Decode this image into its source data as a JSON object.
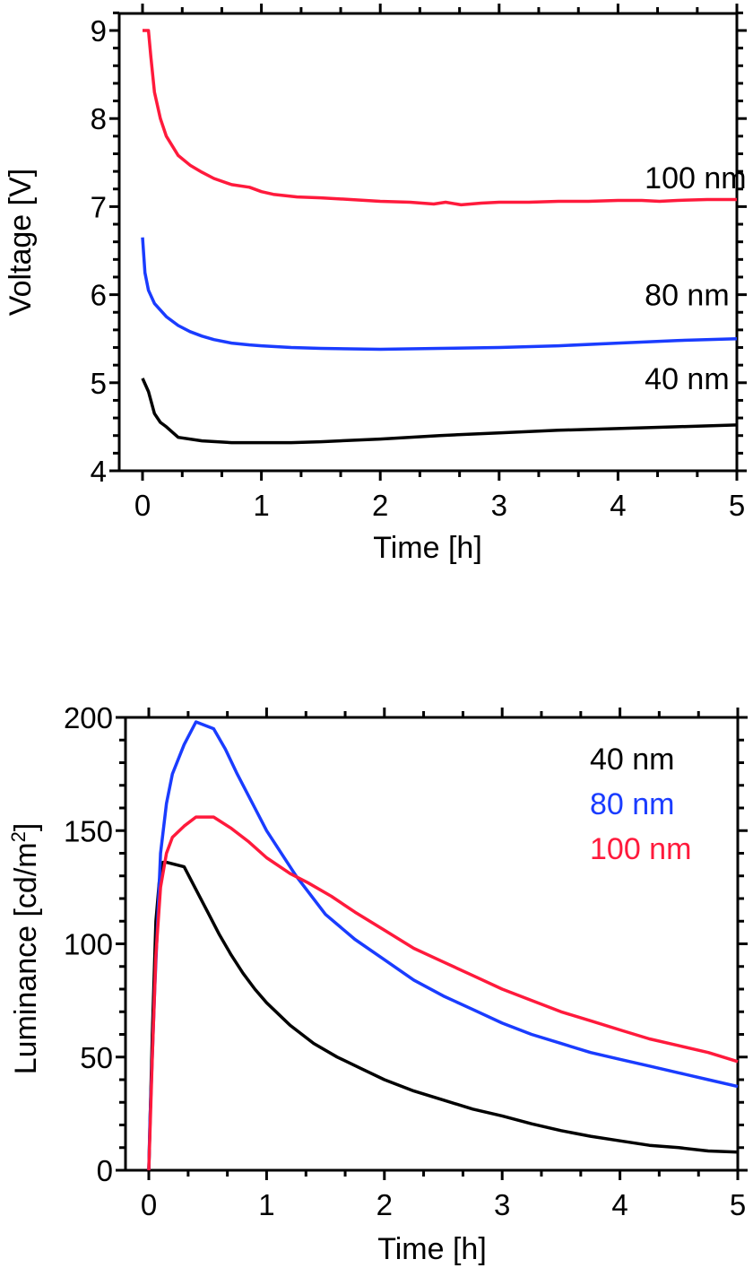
{
  "chart_data": [
    {
      "type": "line",
      "panel": "top",
      "title": "",
      "xlabel": "Time [h]",
      "ylabel": "Voltage [V]",
      "xlim": [
        -0.2,
        5
      ],
      "ylim": [
        4,
        9.3
      ],
      "xticks": [
        0,
        1,
        2,
        3,
        4,
        5
      ],
      "yticks": [
        4,
        5,
        6,
        7,
        8,
        9
      ],
      "grid": false,
      "legend": "inline labels on the right",
      "series": [
        {
          "name": "100 nm",
          "color": "#ff1a3c",
          "label_color": "#000000",
          "x": [
            0,
            0.05,
            0.07,
            0.1,
            0.15,
            0.2,
            0.3,
            0.4,
            0.5,
            0.6,
            0.75,
            0.9,
            1.0,
            1.1,
            1.3,
            1.5,
            1.75,
            2.0,
            2.25,
            2.45,
            2.55,
            2.68,
            2.85,
            3.0,
            3.25,
            3.5,
            3.75,
            4.0,
            4.2,
            4.35,
            4.5,
            4.75,
            5.0
          ],
          "y": [
            9.0,
            9.0,
            8.7,
            8.3,
            8.0,
            7.8,
            7.58,
            7.47,
            7.39,
            7.32,
            7.25,
            7.22,
            7.17,
            7.14,
            7.11,
            7.1,
            7.08,
            7.06,
            7.05,
            7.03,
            7.05,
            7.02,
            7.04,
            7.05,
            7.05,
            7.06,
            7.06,
            7.07,
            7.07,
            7.06,
            7.07,
            7.08,
            7.08
          ]
        },
        {
          "name": "80 nm",
          "color": "#1a3cff",
          "label_color": "#000000",
          "x": [
            0,
            0.02,
            0.05,
            0.1,
            0.2,
            0.3,
            0.4,
            0.5,
            0.6,
            0.75,
            0.9,
            1.0,
            1.25,
            1.5,
            2.0,
            2.5,
            3.0,
            3.5,
            4.0,
            4.5,
            5.0
          ],
          "y": [
            6.65,
            6.25,
            6.05,
            5.9,
            5.75,
            5.65,
            5.58,
            5.53,
            5.49,
            5.45,
            5.43,
            5.42,
            5.4,
            5.39,
            5.38,
            5.39,
            5.4,
            5.42,
            5.45,
            5.48,
            5.5
          ]
        },
        {
          "name": "40 nm",
          "color": "#000000",
          "label_color": "#000000",
          "x": [
            0,
            0.05,
            0.1,
            0.15,
            0.2,
            0.3,
            0.5,
            0.75,
            1.0,
            1.25,
            1.5,
            2.0,
            2.5,
            3.0,
            3.5,
            4.0,
            4.5,
            5.0
          ],
          "y": [
            5.05,
            4.9,
            4.65,
            4.55,
            4.5,
            4.38,
            4.34,
            4.32,
            4.32,
            4.32,
            4.33,
            4.36,
            4.4,
            4.43,
            4.46,
            4.48,
            4.5,
            4.52
          ]
        }
      ],
      "annotations": [
        {
          "text": "100 nm",
          "x": 4.3,
          "y": 7.33
        },
        {
          "text": "80 nm",
          "x": 4.3,
          "y": 6.0
        },
        {
          "text": "40 nm",
          "x": 4.3,
          "y": 5.05
        }
      ]
    },
    {
      "type": "line",
      "panel": "bottom",
      "title": "",
      "xlabel": "Time [h]",
      "ylabel": "Luminance [cd/m2]",
      "ylabel_main": "Luminance [cd/m",
      "ylabel_sup": "2",
      "ylabel_end": "]",
      "xlim": [
        -0.2,
        5
      ],
      "ylim": [
        0,
        200
      ],
      "xticks": [
        0,
        1,
        2,
        3,
        4,
        5
      ],
      "yticks": [
        0,
        50,
        100,
        150,
        200
      ],
      "grid": false,
      "legend": "top-right",
      "series": [
        {
          "name": "40 nm",
          "color": "#000000",
          "x": [
            0,
            0.03,
            0.06,
            0.09,
            0.12,
            0.15,
            0.3,
            0.4,
            0.5,
            0.6,
            0.7,
            0.8,
            0.9,
            1.0,
            1.2,
            1.4,
            1.6,
            1.8,
            2.0,
            2.25,
            2.5,
            2.75,
            3.0,
            3.25,
            3.5,
            3.75,
            4.0,
            4.25,
            4.5,
            4.75,
            5.0
          ],
          "y": [
            0,
            60,
            110,
            128,
            136,
            136,
            134,
            124,
            114,
            104,
            95,
            87,
            80,
            74,
            64,
            56,
            50,
            45,
            40,
            35,
            31,
            27,
            24,
            20.5,
            17.5,
            15,
            13,
            11,
            10,
            8.5,
            8
          ]
        },
        {
          "name": "80 nm",
          "color": "#1a3cff",
          "x": [
            0,
            0.01,
            0.05,
            0.1,
            0.15,
            0.2,
            0.3,
            0.4,
            0.55,
            0.65,
            0.75,
            0.9,
            1.0,
            1.25,
            1.5,
            1.75,
            2.0,
            2.25,
            2.5,
            2.75,
            3.0,
            3.25,
            3.5,
            3.75,
            4.0,
            4.25,
            4.5,
            4.75,
            5.0
          ],
          "y": [
            0,
            22,
            80,
            140,
            162,
            175,
            188,
            198,
            195,
            186,
            175,
            160,
            150,
            130,
            113,
            102,
            93,
            84,
            77,
            71,
            65,
            60,
            56,
            52,
            49,
            46,
            43,
            40,
            37
          ]
        },
        {
          "name": "100 nm",
          "color": "#ff1a3c",
          "x": [
            0,
            0.03,
            0.06,
            0.1,
            0.15,
            0.2,
            0.3,
            0.4,
            0.55,
            0.7,
            0.85,
            1.0,
            1.2,
            1.35,
            1.55,
            1.75,
            2.0,
            2.25,
            2.5,
            2.75,
            3.0,
            3.25,
            3.5,
            3.75,
            4.0,
            4.25,
            4.5,
            4.75,
            5.0
          ],
          "y": [
            0,
            50,
            95,
            125,
            140,
            147,
            152,
            156,
            156,
            151,
            145,
            138,
            131,
            127,
            121,
            114,
            106,
            98,
            92,
            86,
            80,
            75,
            70,
            66,
            62,
            58,
            55,
            52,
            48
          ]
        }
      ],
      "legend_entries": [
        {
          "text": "40 nm",
          "color": "#000000"
        },
        {
          "text": "80 nm",
          "color": "#1a3cff"
        },
        {
          "text": "100 nm",
          "color": "#ff1a3c"
        }
      ]
    }
  ]
}
